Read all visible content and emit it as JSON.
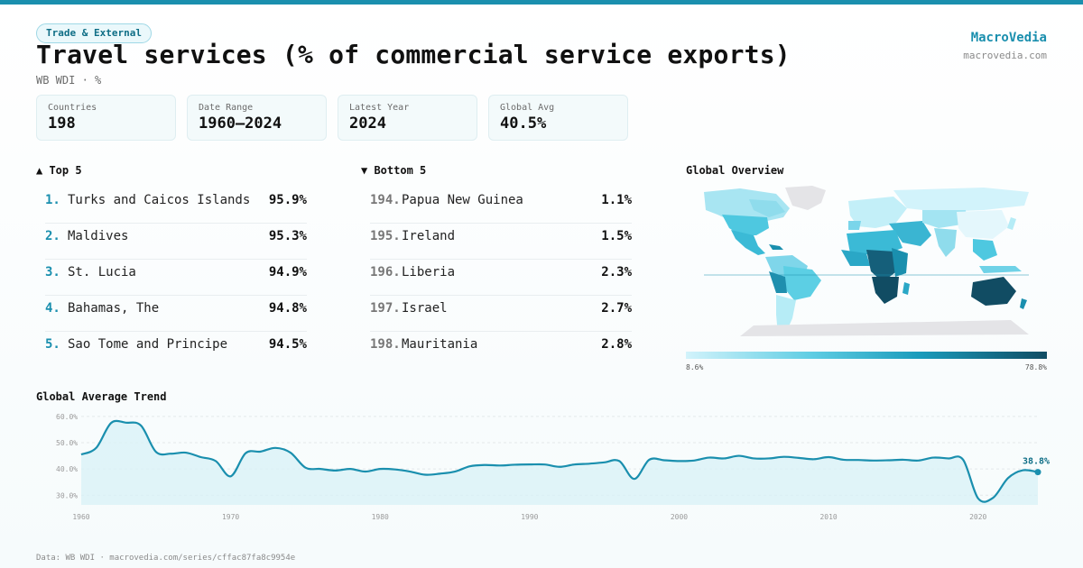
{
  "header": {
    "tag": "Trade & External",
    "title": "Travel services (% of commercial service exports)",
    "subtitle": "WB WDI · %",
    "brand_name": "MacroVedia",
    "brand_url": "macrovedia.com"
  },
  "stats": [
    {
      "label": "Countries",
      "value": "198"
    },
    {
      "label": "Date Range",
      "value": "1960–2024"
    },
    {
      "label": "Latest Year",
      "value": "2024"
    },
    {
      "label": "Global Avg",
      "value": "40.5%"
    }
  ],
  "top5": {
    "title": "▲ Top 5",
    "items": [
      {
        "rank": "1.",
        "name": "Turks and Caicos Islands",
        "value": "95.9%"
      },
      {
        "rank": "2.",
        "name": "Maldives",
        "value": "95.3%"
      },
      {
        "rank": "3.",
        "name": "St. Lucia",
        "value": "94.9%"
      },
      {
        "rank": "4.",
        "name": "Bahamas, The",
        "value": "94.8%"
      },
      {
        "rank": "5.",
        "name": "Sao Tome and Principe",
        "value": "94.5%"
      }
    ]
  },
  "bottom5": {
    "title": "▼ Bottom 5",
    "items": [
      {
        "rank": "194.",
        "name": "Papua New Guinea",
        "value": "1.1%"
      },
      {
        "rank": "195.",
        "name": "Ireland",
        "value": "1.5%"
      },
      {
        "rank": "196.",
        "name": "Liberia",
        "value": "2.3%"
      },
      {
        "rank": "197.",
        "name": "Israel",
        "value": "2.7%"
      },
      {
        "rank": "198.",
        "name": "Mauritania",
        "value": "2.8%"
      }
    ]
  },
  "map": {
    "title": "Global Overview",
    "legend_min": "8.6%",
    "legend_max": "78.8%"
  },
  "trend": {
    "title": "Global Average Trend",
    "end_label": "38.8%"
  },
  "footer": "Data: WB WDI · macrovedia.com/series/cffac87fa8c9954e",
  "colors": {
    "accent": "#1a8fae",
    "line": "#1a8fae",
    "area": "#d8f1f7",
    "map_low": "#d2f3fb",
    "map_high": "#114c63",
    "no_data": "#e4e4e7"
  },
  "chart_data": {
    "type": "area",
    "title": "Global Average Trend",
    "xlabel": "",
    "ylabel": "",
    "xlim": [
      1960,
      2024
    ],
    "ylim": [
      27,
      62
    ],
    "yticks": [
      30,
      40,
      50,
      60
    ],
    "ytick_labels": [
      "30.0%",
      "40.0%",
      "50.0%",
      "60.0%"
    ],
    "xticks": [
      1960,
      1970,
      1980,
      1990,
      2000,
      2010,
      2020
    ],
    "grid": true,
    "series": [
      {
        "values": [
          [
            1960,
            45.5
          ],
          [
            1961,
            48
          ],
          [
            1962,
            57.5
          ],
          [
            1963,
            57.6
          ],
          [
            1964,
            56.5
          ],
          [
            1965,
            46.5
          ],
          [
            1966,
            45.8
          ],
          [
            1967,
            46.2
          ],
          [
            1968,
            44.5
          ],
          [
            1969,
            43
          ],
          [
            1970,
            37.2
          ],
          [
            1971,
            46
          ],
          [
            1972,
            46.6
          ],
          [
            1973,
            48
          ],
          [
            1974,
            46.2
          ],
          [
            1975,
            40.5
          ],
          [
            1976,
            40
          ],
          [
            1977,
            39.4
          ],
          [
            1978,
            40
          ],
          [
            1979,
            39
          ],
          [
            1980,
            40
          ],
          [
            1981,
            39.8
          ],
          [
            1982,
            39
          ],
          [
            1983,
            37.8
          ],
          [
            1984,
            38.2
          ],
          [
            1985,
            39
          ],
          [
            1986,
            41
          ],
          [
            1987,
            41.5
          ],
          [
            1988,
            41.3
          ],
          [
            1989,
            41.6
          ],
          [
            1990,
            41.7
          ],
          [
            1991,
            41.7
          ],
          [
            1992,
            40.8
          ],
          [
            1993,
            41.7
          ],
          [
            1994,
            42
          ],
          [
            1995,
            42.5
          ],
          [
            1996,
            43
          ],
          [
            1997,
            36.2
          ],
          [
            1998,
            43.5
          ],
          [
            1999,
            43.3
          ],
          [
            2000,
            43
          ],
          [
            2001,
            43.2
          ],
          [
            2002,
            44.3
          ],
          [
            2003,
            44
          ],
          [
            2004,
            45
          ],
          [
            2005,
            44
          ],
          [
            2006,
            44
          ],
          [
            2007,
            44.6
          ],
          [
            2008,
            44.2
          ],
          [
            2009,
            43.7
          ],
          [
            2010,
            44.5
          ],
          [
            2011,
            43.5
          ],
          [
            2012,
            43.4
          ],
          [
            2013,
            43.2
          ],
          [
            2014,
            43.3
          ],
          [
            2015,
            43.5
          ],
          [
            2016,
            43.2
          ],
          [
            2017,
            44.3
          ],
          [
            2018,
            44
          ],
          [
            2019,
            43.5
          ],
          [
            2020,
            28.8
          ],
          [
            2021,
            29
          ],
          [
            2022,
            36.5
          ],
          [
            2023,
            39.5
          ],
          [
            2024,
            38.8
          ]
        ]
      }
    ]
  }
}
